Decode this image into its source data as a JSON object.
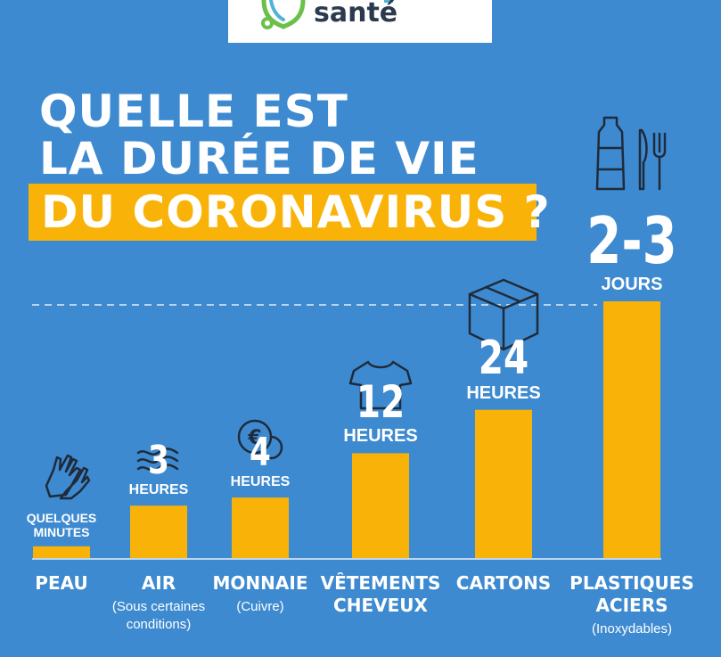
{
  "logo": {
    "text": "santé"
  },
  "title": {
    "line1": "QUELLE EST",
    "line2": "LA DURÉE DE VIE",
    "line3": "DU CORONAVIRUS ?"
  },
  "colors": {
    "background": "#3e8ad0",
    "accent": "#f9b208",
    "text": "#ffffff",
    "icon": "#1f2b3a"
  },
  "chart_data": {
    "type": "bar",
    "ylabel": "",
    "unit": "heures",
    "categories": [
      "PEAU",
      "AIR",
      "MONNAIE",
      "VÊTEMENTS CHEVEUX",
      "CARTONS",
      "PLASTIQUES ACIERS"
    ],
    "category_lines": [
      [
        "PEAU"
      ],
      [
        "AIR"
      ],
      [
        "MONNAIE"
      ],
      [
        "VÊTEMENTS",
        "CHEVEUX"
      ],
      [
        "CARTONS"
      ],
      [
        "PLASTIQUES",
        "ACIERS"
      ]
    ],
    "sublabels": [
      [],
      [
        "(Sous certaines",
        "conditions)"
      ],
      [
        "(Cuivre)"
      ],
      [],
      [],
      [
        "(Inoxydables)"
      ]
    ],
    "value_labels": [
      {
        "number": "",
        "unit_lines": [
          "QUELQUES",
          "MINUTES"
        ]
      },
      {
        "number": "3",
        "unit_lines": [
          "HEURES"
        ]
      },
      {
        "number": "4",
        "unit_lines": [
          "HEURES"
        ]
      },
      {
        "number": "12",
        "unit_lines": [
          "HEURES"
        ]
      },
      {
        "number": "24",
        "unit_lines": [
          "HEURES"
        ]
      },
      {
        "number": "2-3",
        "unit_lines": [
          "JOURS"
        ]
      }
    ],
    "values": [
      0.15,
      3,
      4,
      12,
      24,
      72
    ],
    "icons": [
      "hands-icon",
      "air-waves-icon",
      "coins-icon",
      "tshirt-icon",
      "box-icon",
      "bottle-cutlery-icon"
    ],
    "grid": false,
    "dashed_reference_line": true
  }
}
